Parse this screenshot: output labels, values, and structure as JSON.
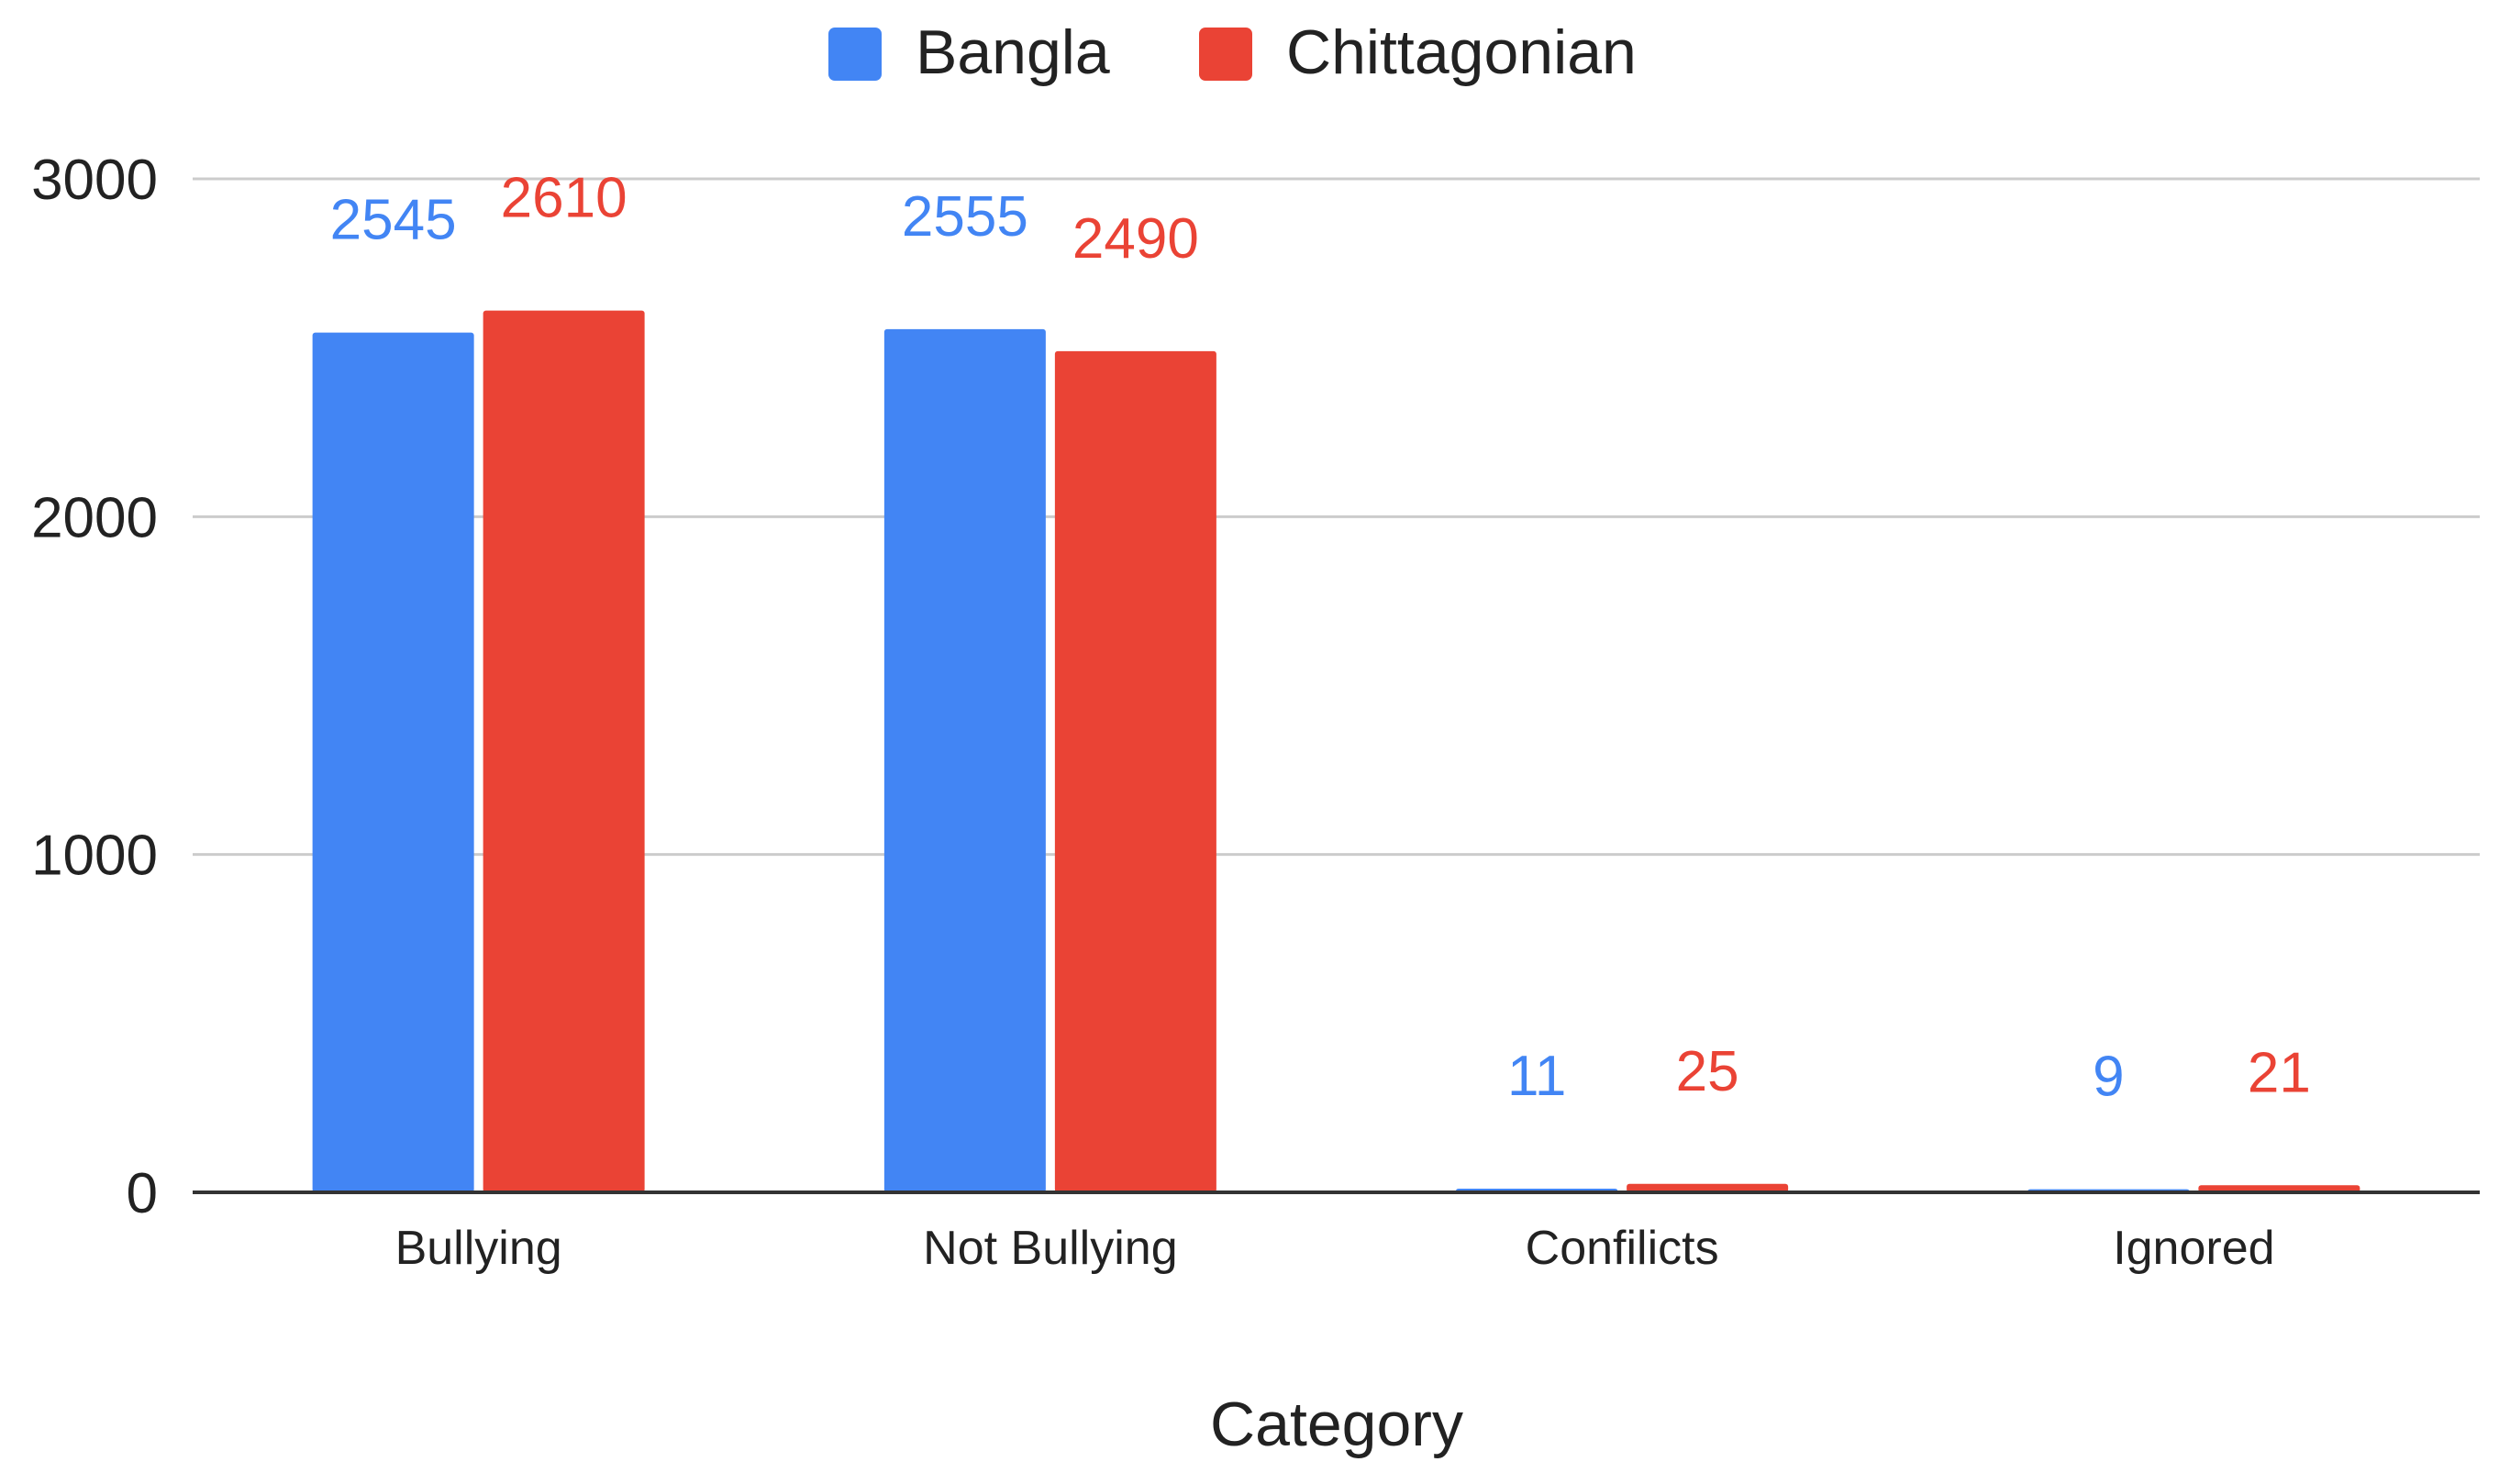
{
  "chart_data": {
    "type": "bar",
    "title": "",
    "xlabel": "Category",
    "ylabel": "",
    "categories": [
      "Bullying",
      "Not Bullying",
      "Confilicts",
      "Ignored"
    ],
    "series": [
      {
        "name": "Bangla",
        "color": "#4285F4",
        "values": [
          2545,
          2555,
          11,
          9
        ]
      },
      {
        "name": "Chittagonian",
        "color": "#EA4335",
        "values": [
          2610,
          2490,
          25,
          21
        ]
      }
    ],
    "ylim": [
      0,
      3000
    ],
    "yticks": [
      0,
      1000,
      2000,
      3000
    ],
    "grid": true,
    "legend": "top-center",
    "data_labels": true
  }
}
